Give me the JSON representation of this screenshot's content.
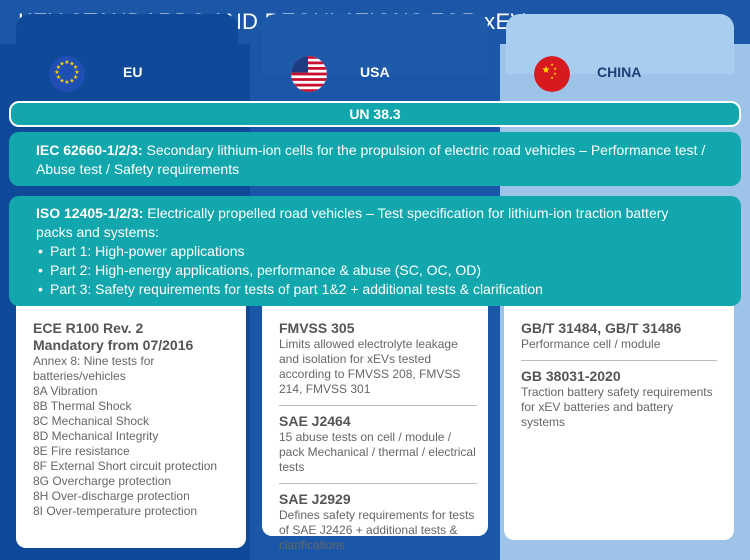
{
  "title": "KEY STANDARDS AND REGULATIONS FOR xEVs",
  "columns": {
    "eu": {
      "label": "EU",
      "flag": "eu-flag-icon",
      "color": "#0f4a9a"
    },
    "usa": {
      "label": "USA",
      "flag": "usa-flag-icon",
      "color": "#1b57a8"
    },
    "china": {
      "label": "CHINA",
      "flag": "china-flag-icon",
      "color": "#9dc3e8"
    }
  },
  "shared": {
    "un": "UN 38.3",
    "iec_code": "IEC 62660-1/2/3:",
    "iec_text": " Secondary lithium-ion cells for the propulsion of electric road vehicles – Performance test /",
    "iec_text2": "Abuse test / Safety requirements",
    "iso_code": "ISO 12405-1/2/3:",
    "iso_text": " Electrically propelled road vehicles – Test specification for lithium-ion traction battery",
    "iso_text2": "packs and systems:",
    "iso_parts": [
      "Part 1: High-power applications",
      "Part 2: High-energy applications, performance & abuse (SC, OC, OD)",
      "Part 3: Safety requirements for tests of part 1&2 + additional tests & clarification"
    ]
  },
  "eu_panel": {
    "heading1": "ECE R100 Rev. 2",
    "heading2": "Mandatory from 07/2016",
    "annex": "Annex 8: Nine tests for batteries/vehicles",
    "items": [
      "8A Vibration",
      "8B Thermal Shock",
      "8C Mechanical Shock",
      "8D Mechanical Integrity",
      "8E Fire resistance",
      "8F External Short circuit protection",
      "8G Overcharge protection",
      "8H Over-discharge protection",
      "8I Over-temperature protection"
    ]
  },
  "usa_panel": {
    "s1_title": "FMVSS 305",
    "s1_text": "Limits allowed electrolyte leakage and isolation for xEVs tested according to FMVSS 208, FMVSS 214, FMVSS 301",
    "s2_title": "SAE J2464",
    "s2_text": "15 abuse tests on cell / module / pack Mechanical / thermal / electrical tests",
    "s3_title": "SAE J2929",
    "s3_text": "Defines safety requirements for tests of SAE J2426 + additional tests & clarifications"
  },
  "china_panel": {
    "s1_title": "GB/T 31484, GB/T 31486",
    "s1_text": "Performance cell / module",
    "s2_title": "GB 38031-2020",
    "s2_text": "Traction battery safety requirements for xEV batteries and battery systems"
  },
  "colors": {
    "title_bar": "#1b56a7",
    "teal": "#12a7ad",
    "background": "#ececec"
  }
}
